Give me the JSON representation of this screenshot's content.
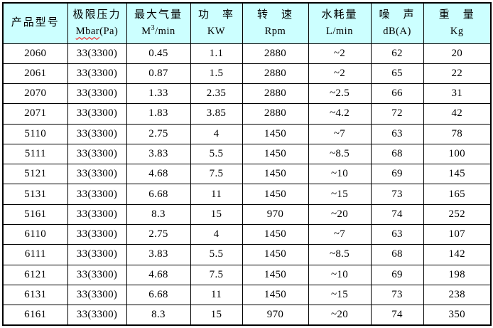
{
  "colors": {
    "header_bg": "#CCFFFF",
    "border": "#000000",
    "text": "#000000",
    "spellcheck_squiggle": "#FF0000",
    "row_bg": "#FFFFFF"
  },
  "table": {
    "columns": [
      {
        "title": "产品型号",
        "unit": ""
      },
      {
        "title": "极限压力",
        "unit_word": "Mbar",
        "unit_rest": "(Pa)"
      },
      {
        "title": "最大气量",
        "unit_base": "M",
        "unit_sup": "3",
        "unit_rest": "/min"
      },
      {
        "title": "功　率",
        "unit": "KW"
      },
      {
        "title": "转　速",
        "unit": "Rpm"
      },
      {
        "title": "水耗量",
        "unit": "L/min"
      },
      {
        "title": "噪　声",
        "unit": "dB(A)"
      },
      {
        "title": "重　量",
        "unit": "Kg"
      }
    ],
    "rows": [
      [
        "2060",
        "33(3300)",
        "0.45",
        "1.1",
        "2880",
        "~2",
        "62",
        "20"
      ],
      [
        "2061",
        "33(3300)",
        "0.87",
        "1.5",
        "2880",
        "~2",
        "65",
        "22"
      ],
      [
        "2070",
        "33(3300)",
        "1.33",
        "2.35",
        "2880",
        "~2.5",
        "66",
        "31"
      ],
      [
        "2071",
        "33(3300)",
        "1.83",
        "3.85",
        "2880",
        "~4.2",
        "72",
        "42"
      ],
      [
        "5110",
        "33(3300)",
        "2.75",
        "4",
        "1450",
        "~7",
        "63",
        "78"
      ],
      [
        "5111",
        "33(3300)",
        "3.83",
        "5.5",
        "1450",
        "~8.5",
        "68",
        "100"
      ],
      [
        "5121",
        "33(3300)",
        "4.68",
        "7.5",
        "1450",
        "~10",
        "69",
        "145"
      ],
      [
        "5131",
        "33(3300)",
        "6.68",
        "11",
        "1450",
        "~15",
        "73",
        "165"
      ],
      [
        "5161",
        "33(3300)",
        "8.3",
        "15",
        "970",
        "~20",
        "74",
        "252"
      ],
      [
        "6110",
        "33(3300)",
        "2.75",
        "4",
        "1450",
        "~7",
        "63",
        "107"
      ],
      [
        "6111",
        "33(3300)",
        "3.83",
        "5.5",
        "1450",
        "~8.5",
        "68",
        "142"
      ],
      [
        "6121",
        "33(3300)",
        "4.68",
        "7.5",
        "1450",
        "~10",
        "69",
        "198"
      ],
      [
        "6131",
        "33(3300)",
        "6.68",
        "11",
        "1450",
        "~15",
        "73",
        "238"
      ],
      [
        "6161",
        "33(3300)",
        "8.3",
        "15",
        "970",
        "~20",
        "74",
        "350"
      ]
    ]
  }
}
